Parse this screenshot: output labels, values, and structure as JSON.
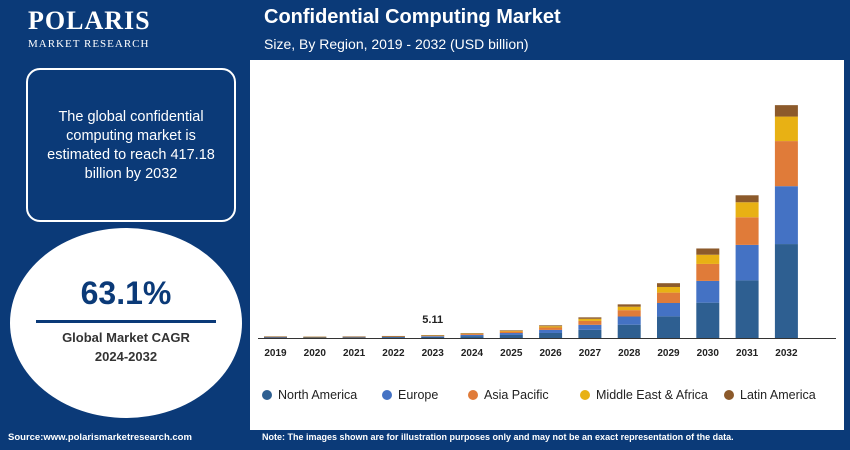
{
  "brand": {
    "name": "POLARIS",
    "tagline": "MARKET RESEARCH"
  },
  "header": {
    "title": "Confidential Computing Market",
    "subtitle": "Size, By Region, 2019 - 2032 (USD billion)"
  },
  "info": {
    "text": "The global confidential computing market is estimated to reach 417.18 billion by 2032"
  },
  "cagr": {
    "value": "63.1%",
    "label_line1": "Global Market CAGR",
    "label_line2": "2024-2032"
  },
  "footer": {
    "source": "Source:www.polarismarketresearch.com",
    "note": "Note: The images shown are for illustration purposes only and may not be an exact representation of the data."
  },
  "colors": {
    "navy": "#0b3a78",
    "north_america": "#2e5f91",
    "europe": "#4472c4",
    "asia_pacific": "#e07b39",
    "middle_east_africa": "#e8b114",
    "latin_america": "#8c5a2b"
  },
  "chart_data": {
    "type": "bar",
    "stacked": true,
    "title": "Confidential Computing Market",
    "subtitle": "Size, By Region, 2019 - 2032 (USD billion)",
    "categories": [
      "2019",
      "2020",
      "2021",
      "2022",
      "2023",
      "2024",
      "2025",
      "2026",
      "2027",
      "2028",
      "2029",
      "2030",
      "2031",
      "2032"
    ],
    "series": [
      {
        "name": "North America",
        "color": "#2e5f91",
        "values": [
          1.2,
          1.0,
          1.1,
          1.6,
          2.0,
          3.4,
          5.5,
          9.0,
          14.6,
          23.8,
          38.8,
          63.3,
          103.2,
          168.3
        ]
      },
      {
        "name": "Europe",
        "color": "#4472c4",
        "values": [
          0.6,
          0.5,
          0.6,
          0.8,
          1.2,
          2.1,
          3.4,
          5.5,
          9.0,
          14.7,
          23.9,
          39.0,
          63.6,
          103.7
        ]
      },
      {
        "name": "Asia Pacific",
        "color": "#e07b39",
        "values": [
          0.5,
          0.4,
          0.5,
          0.6,
          1.0,
          1.6,
          2.6,
          4.3,
          7.0,
          11.4,
          18.6,
          30.4,
          49.5,
          80.8
        ]
      },
      {
        "name": "Middle East & Africa",
        "color": "#e8b114",
        "values": [
          0.3,
          0.25,
          0.3,
          0.4,
          0.5,
          0.9,
          1.4,
          2.3,
          3.8,
          6.2,
          10.1,
          16.5,
          26.9,
          43.9
        ]
      },
      {
        "name": "Latin America",
        "color": "#8c5a2b",
        "values": [
          0.2,
          0.15,
          0.2,
          0.25,
          0.4,
          0.6,
          1.0,
          1.6,
          2.6,
          4.2,
          6.8,
          11.2,
          12.5,
          20.5
        ]
      }
    ],
    "annotations": [
      {
        "category": "2023",
        "text": "5.11"
      }
    ],
    "ylim": [
      0,
      430
    ],
    "xlabel": "",
    "ylabel": "",
    "grid": false,
    "legend": "bottom"
  }
}
